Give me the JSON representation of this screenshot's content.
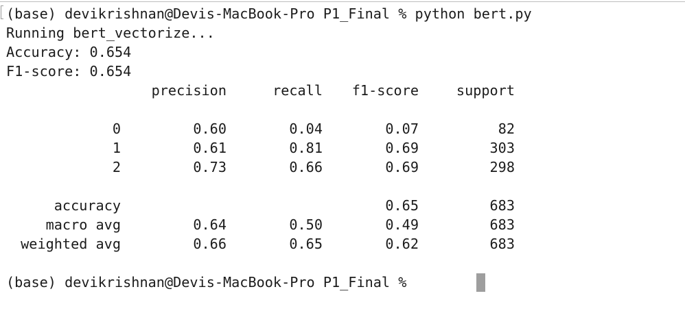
{
  "terminal": {
    "command_line": "(base) devikrishnan@Devis-MacBook-Pro P1_Final % python bert.py",
    "output_lines": [
      "Running bert_vectorize...",
      "Accuracy: 0.654",
      "F1-score: 0.654"
    ],
    "report": {
      "headers": [
        "precision",
        "recall",
        "f1-score",
        "support"
      ],
      "class_rows": [
        {
          "label": "0",
          "precision": "0.60",
          "recall": "0.04",
          "f1": "0.07",
          "support": "82"
        },
        {
          "label": "1",
          "precision": "0.61",
          "recall": "0.81",
          "f1": "0.69",
          "support": "303"
        },
        {
          "label": "2",
          "precision": "0.73",
          "recall": "0.66",
          "f1": "0.69",
          "support": "298"
        }
      ],
      "summary_rows": [
        {
          "label": "accuracy",
          "precision": "",
          "recall": "",
          "f1": "0.65",
          "support": "683"
        },
        {
          "label": "macro avg",
          "precision": "0.64",
          "recall": "0.50",
          "f1": "0.49",
          "support": "683"
        },
        {
          "label": "weighted avg",
          "precision": "0.66",
          "recall": "0.65",
          "f1": "0.62",
          "support": "683"
        }
      ]
    },
    "prompt": "(base) devikrishnan@Devis-MacBook-Pro P1_Final % "
  }
}
